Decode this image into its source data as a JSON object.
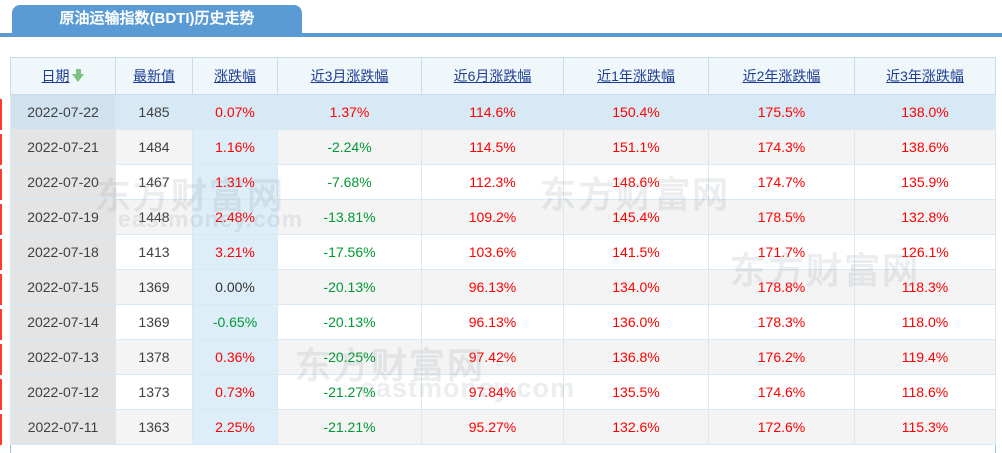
{
  "tab": {
    "title": "原油运输指数(BDTI)历史走势"
  },
  "table": {
    "columns": [
      {
        "label": "日期",
        "sorted": "desc"
      },
      {
        "label": "最新值"
      },
      {
        "label": "涨跌幅"
      },
      {
        "label": "近3月涨跌幅"
      },
      {
        "label": "近6月涨跌幅"
      },
      {
        "label": "近1年涨跌幅"
      },
      {
        "label": "近2年涨跌幅"
      },
      {
        "label": "近3年涨跌幅"
      }
    ],
    "rows": [
      {
        "date": "2022-07-22",
        "latest": "1485",
        "changes": [
          {
            "v": "0.07%",
            "t": "up"
          },
          {
            "v": "1.37%",
            "t": "up"
          },
          {
            "v": "114.6%",
            "t": "up"
          },
          {
            "v": "150.4%",
            "t": "up"
          },
          {
            "v": "175.5%",
            "t": "up"
          },
          {
            "v": "138.0%",
            "t": "up"
          }
        ]
      },
      {
        "date": "2022-07-21",
        "latest": "1484",
        "changes": [
          {
            "v": "1.16%",
            "t": "up"
          },
          {
            "v": "-2.24%",
            "t": "down"
          },
          {
            "v": "114.5%",
            "t": "up"
          },
          {
            "v": "151.1%",
            "t": "up"
          },
          {
            "v": "174.3%",
            "t": "up"
          },
          {
            "v": "138.6%",
            "t": "up"
          }
        ]
      },
      {
        "date": "2022-07-20",
        "latest": "1467",
        "changes": [
          {
            "v": "1.31%",
            "t": "up"
          },
          {
            "v": "-7.68%",
            "t": "down"
          },
          {
            "v": "112.3%",
            "t": "up"
          },
          {
            "v": "148.6%",
            "t": "up"
          },
          {
            "v": "174.7%",
            "t": "up"
          },
          {
            "v": "135.9%",
            "t": "up"
          }
        ]
      },
      {
        "date": "2022-07-19",
        "latest": "1448",
        "changes": [
          {
            "v": "2.48%",
            "t": "up"
          },
          {
            "v": "-13.81%",
            "t": "down"
          },
          {
            "v": "109.2%",
            "t": "up"
          },
          {
            "v": "145.4%",
            "t": "up"
          },
          {
            "v": "178.5%",
            "t": "up"
          },
          {
            "v": "132.8%",
            "t": "up"
          }
        ]
      },
      {
        "date": "2022-07-18",
        "latest": "1413",
        "changes": [
          {
            "v": "3.21%",
            "t": "up"
          },
          {
            "v": "-17.56%",
            "t": "down"
          },
          {
            "v": "103.6%",
            "t": "up"
          },
          {
            "v": "141.5%",
            "t": "up"
          },
          {
            "v": "171.7%",
            "t": "up"
          },
          {
            "v": "126.1%",
            "t": "up"
          }
        ]
      },
      {
        "date": "2022-07-15",
        "latest": "1369",
        "changes": [
          {
            "v": "0.00%",
            "t": "flat"
          },
          {
            "v": "-20.13%",
            "t": "down"
          },
          {
            "v": "96.13%",
            "t": "up"
          },
          {
            "v": "134.0%",
            "t": "up"
          },
          {
            "v": "178.8%",
            "t": "up"
          },
          {
            "v": "118.3%",
            "t": "up"
          }
        ]
      },
      {
        "date": "2022-07-14",
        "latest": "1369",
        "changes": [
          {
            "v": "-0.65%",
            "t": "down"
          },
          {
            "v": "-20.13%",
            "t": "down"
          },
          {
            "v": "96.13%",
            "t": "up"
          },
          {
            "v": "136.0%",
            "t": "up"
          },
          {
            "v": "178.3%",
            "t": "up"
          },
          {
            "v": "118.0%",
            "t": "up"
          }
        ]
      },
      {
        "date": "2022-07-13",
        "latest": "1378",
        "changes": [
          {
            "v": "0.36%",
            "t": "up"
          },
          {
            "v": "-20.25%",
            "t": "down"
          },
          {
            "v": "97.42%",
            "t": "up"
          },
          {
            "v": "136.8%",
            "t": "up"
          },
          {
            "v": "176.2%",
            "t": "up"
          },
          {
            "v": "119.4%",
            "t": "up"
          }
        ]
      },
      {
        "date": "2022-07-12",
        "latest": "1373",
        "changes": [
          {
            "v": "0.73%",
            "t": "up"
          },
          {
            "v": "-21.27%",
            "t": "down"
          },
          {
            "v": "97.84%",
            "t": "up"
          },
          {
            "v": "135.5%",
            "t": "up"
          },
          {
            "v": "174.6%",
            "t": "up"
          },
          {
            "v": "118.6%",
            "t": "up"
          }
        ]
      },
      {
        "date": "2022-07-11",
        "latest": "1363",
        "changes": [
          {
            "v": "2.25%",
            "t": "up"
          },
          {
            "v": "-21.21%",
            "t": "down"
          },
          {
            "v": "95.27%",
            "t": "up"
          },
          {
            "v": "132.6%",
            "t": "up"
          },
          {
            "v": "172.6%",
            "t": "up"
          },
          {
            "v": "115.3%",
            "t": "up"
          }
        ]
      }
    ]
  },
  "watermark": {
    "brand": "东方财富网",
    "domain": "eastmoney.com"
  },
  "colors": {
    "accent_blue": "#5b9bd5",
    "up_red": "#ff0000",
    "down_green": "#009933",
    "flat": "#333333"
  }
}
